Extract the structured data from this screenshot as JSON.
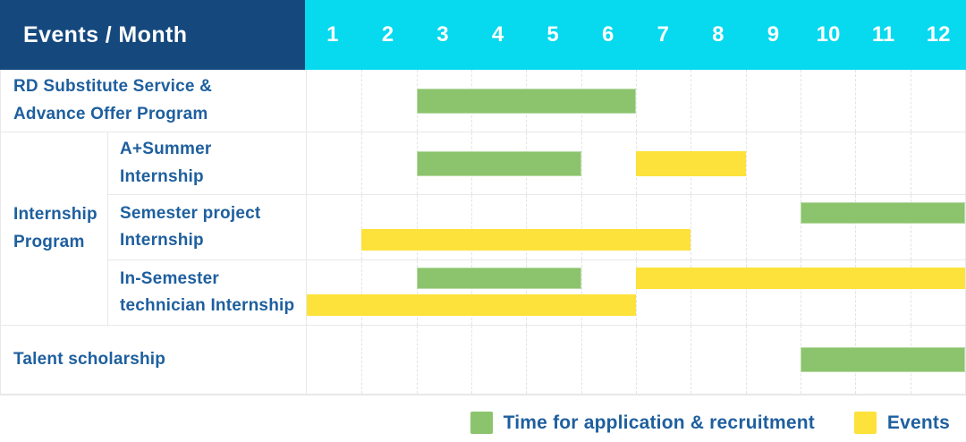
{
  "header": {
    "title": "Events / Month",
    "months": [
      "1",
      "2",
      "3",
      "4",
      "5",
      "6",
      "7",
      "8",
      "9",
      "10",
      "11",
      "12"
    ]
  },
  "legend": [
    {
      "color_key": "green",
      "label": "Time for application & recruitment"
    },
    {
      "color_key": "yellow",
      "label": "Events"
    }
  ],
  "colors": {
    "header_bg": "#15497E",
    "months_bg": "#07D9EE",
    "green": "#8BC46C",
    "yellow": "#FDE23B",
    "label_text": "#1E5F9E",
    "header_text": "#FFFFFF",
    "grid_line": "#E3E3E3"
  },
  "chart_data": {
    "type": "bar",
    "subtype": "gantt",
    "title": "Events / Month",
    "x_axis": {
      "label": "Month",
      "ticks": [
        1,
        2,
        3,
        4,
        5,
        6,
        7,
        8,
        9,
        10,
        11,
        12
      ],
      "range": [
        1,
        12
      ]
    },
    "grid": true,
    "legend_position": "bottom-right",
    "series_legend": [
      "Time for application & recruitment",
      "Events"
    ],
    "rows": [
      {
        "group": null,
        "label": "RD Substitute Service & Advance Offer Program",
        "bars": [
          {
            "series": "Time for application & recruitment",
            "color": "green",
            "start_month": 3,
            "end_month": 6,
            "line": "center"
          }
        ]
      },
      {
        "group": "Internship Program",
        "label": "A+Summer Internship",
        "bars": [
          {
            "series": "Time for application & recruitment",
            "color": "green",
            "start_month": 3,
            "end_month": 5,
            "line": "center"
          },
          {
            "series": "Events",
            "color": "yellow",
            "start_month": 7,
            "end_month": 8,
            "line": "center"
          }
        ]
      },
      {
        "group": "Internship Program",
        "label": "Semester project Internship",
        "bars": [
          {
            "series": "Time for application & recruitment",
            "color": "green",
            "start_month": 10,
            "end_month": 12,
            "line": "top"
          },
          {
            "series": "Events",
            "color": "yellow",
            "start_month": 2,
            "end_month": 7,
            "line": "bottom"
          }
        ]
      },
      {
        "group": "Internship Program",
        "label": "In-Semester technician Internship",
        "bars": [
          {
            "series": "Time for application & recruitment",
            "color": "green",
            "start_month": 3,
            "end_month": 5,
            "line": "top"
          },
          {
            "series": "Events",
            "color": "yellow",
            "start_month": 7,
            "end_month": 12,
            "line": "top"
          },
          {
            "series": "Events",
            "color": "yellow",
            "start_month": 1,
            "end_month": 6,
            "line": "bottom"
          }
        ]
      },
      {
        "group": null,
        "label": "Talent scholarship",
        "bars": [
          {
            "series": "Time for application & recruitment",
            "color": "green",
            "start_month": 10,
            "end_month": 12,
            "line": "center"
          }
        ]
      }
    ]
  }
}
